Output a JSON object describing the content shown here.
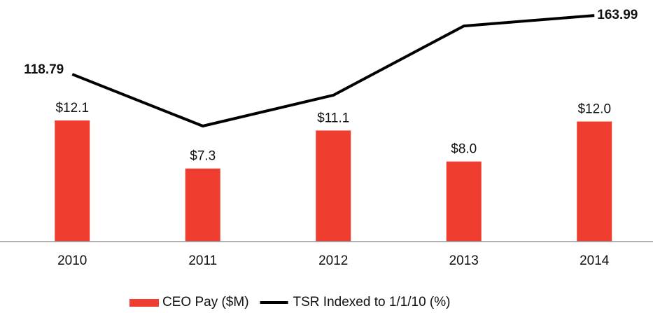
{
  "chart_data": {
    "type": "bar+line",
    "categories": [
      "2010",
      "2011",
      "2012",
      "2013",
      "2014"
    ],
    "series": [
      {
        "name": "CEO Pay ($M)",
        "type": "bar",
        "color": "#ef3e2f",
        "axis": "y",
        "values": [
          12.1,
          7.3,
          11.1,
          8.0,
          12.0
        ],
        "value_labels": [
          "$12.1",
          "$7.3",
          "$11.1",
          "$8.0",
          "$12.0"
        ]
      },
      {
        "name": "TSR Indexed to 1/1/10 (%)",
        "type": "line",
        "color": "#000000",
        "axis": "y2",
        "values": [
          118.79,
          79.0,
          102.7,
          155.9,
          163.99
        ],
        "value_labels": [
          "118.79",
          null,
          null,
          null,
          "163.99"
        ]
      }
    ],
    "ylim": [
      0,
      24
    ],
    "y2lim": [
      -9.8,
      174.8
    ],
    "legend": "bottom"
  }
}
